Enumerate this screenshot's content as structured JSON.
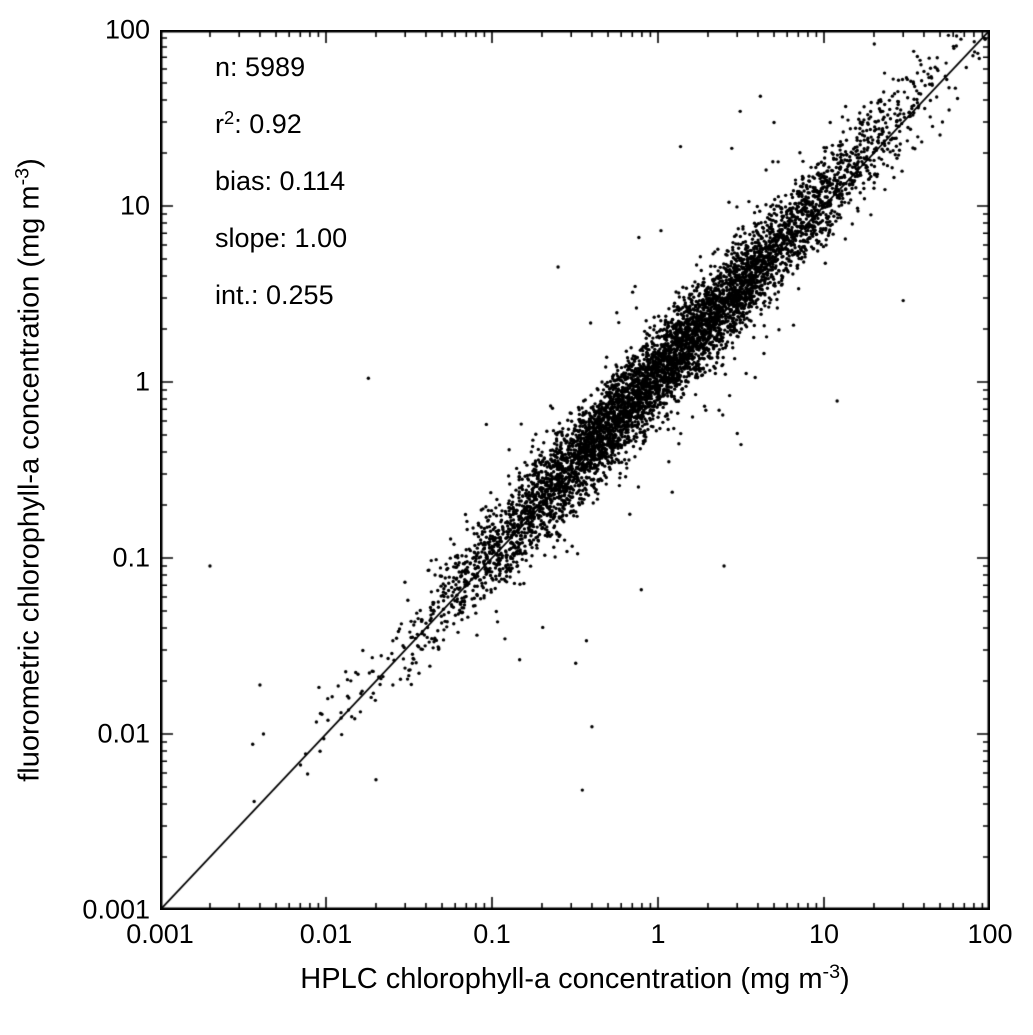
{
  "figure": {
    "background_color": "#ffffff",
    "ink_color": "#000000"
  },
  "chart_data": {
    "type": "scatter",
    "title": "",
    "xlabel": "HPLC chlorophyll-a concentration (mg m⁻³)",
    "ylabel": "fluorometric chlorophyll-a concentration (mg m⁻³)",
    "xlabel_parts": {
      "pre": "HPLC chlorophyll-a concentration (mg m",
      "sup": "-3",
      "post": ")"
    },
    "ylabel_parts": {
      "pre": "fluorometric chlorophyll-a concentration (mg m",
      "sup": "-3",
      "post": ")"
    },
    "x_scale": "log",
    "y_scale": "log",
    "xlim": [
      0.001,
      100
    ],
    "ylim": [
      0.001,
      100
    ],
    "x_ticks": [
      "0.001",
      "0.01",
      "0.1",
      "1",
      "10",
      "100"
    ],
    "y_ticks": [
      "0.001",
      "0.01",
      "0.1",
      "1",
      "10",
      "100"
    ],
    "grid": false,
    "legend": false,
    "annotations": [
      {
        "pre": "n: 5989",
        "sup": "",
        "post": ""
      },
      {
        "pre": "r",
        "sup": "2",
        "post": ": 0.92"
      },
      {
        "pre": "bias: 0.114",
        "sup": "",
        "post": ""
      },
      {
        "pre": "slope: 1.00",
        "sup": "",
        "post": ""
      },
      {
        "pre": "int.: 0.255",
        "sup": "",
        "post": ""
      }
    ],
    "stats": {
      "n": 5989,
      "r_squared": 0.92,
      "bias": 0.114,
      "slope": 1.0,
      "intercept": 0.255
    },
    "reference_line": {
      "type": "one-to-one",
      "from": 0.001,
      "to": 100
    },
    "point_color": "#000000",
    "line_color": "#000000",
    "point_cloud": {
      "n": 5989,
      "log10_x_mean": 0.05,
      "log10_x_sd": 0.68,
      "log10_bias": 0.05,
      "log10_residual_sd": 0.13,
      "outlier_fraction": 0.015,
      "outlier_residual_sd": 0.45,
      "point_radius_px": 1.7,
      "seed": 7
    },
    "outlier_points": [
      [
        0.002,
        0.09
      ],
      [
        0.004,
        0.019
      ],
      [
        0.0042,
        0.01
      ],
      [
        0.018,
        1.05
      ],
      [
        0.02,
        0.0055
      ],
      [
        0.35,
        0.0048
      ],
      [
        0.4,
        0.011
      ],
      [
        2.5,
        0.09
      ],
      [
        0.25,
        4.5
      ],
      [
        30,
        2.9
      ],
      [
        12,
        0.78
      ]
    ]
  }
}
